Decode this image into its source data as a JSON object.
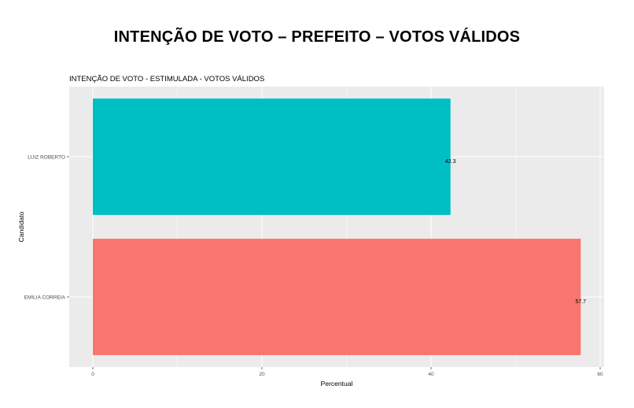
{
  "page": {
    "title": "INTENÇÃO DE VOTO – PREFEITO – VOTOS VÁLIDOS"
  },
  "chart_data": {
    "type": "bar",
    "orientation": "horizontal",
    "title": "INTENÇÃO DE VOTO - ESTIMULADA - VOTOS VÁLIDOS",
    "xlabel": "Percentual",
    "ylabel": "Candidato",
    "categories": [
      "EMILIA CORREIA",
      "LUIZ ROBERTO"
    ],
    "values": [
      57.7,
      42.3
    ],
    "data_labels": [
      "57.7",
      "42.3"
    ],
    "colors": [
      "#F8766D",
      "#00BFC4"
    ],
    "xlim": [
      0,
      60
    ],
    "xticks": [
      "0",
      "20",
      "40",
      "60"
    ],
    "grid": true,
    "panel_background": "#EBEBEB",
    "legend": "none"
  }
}
